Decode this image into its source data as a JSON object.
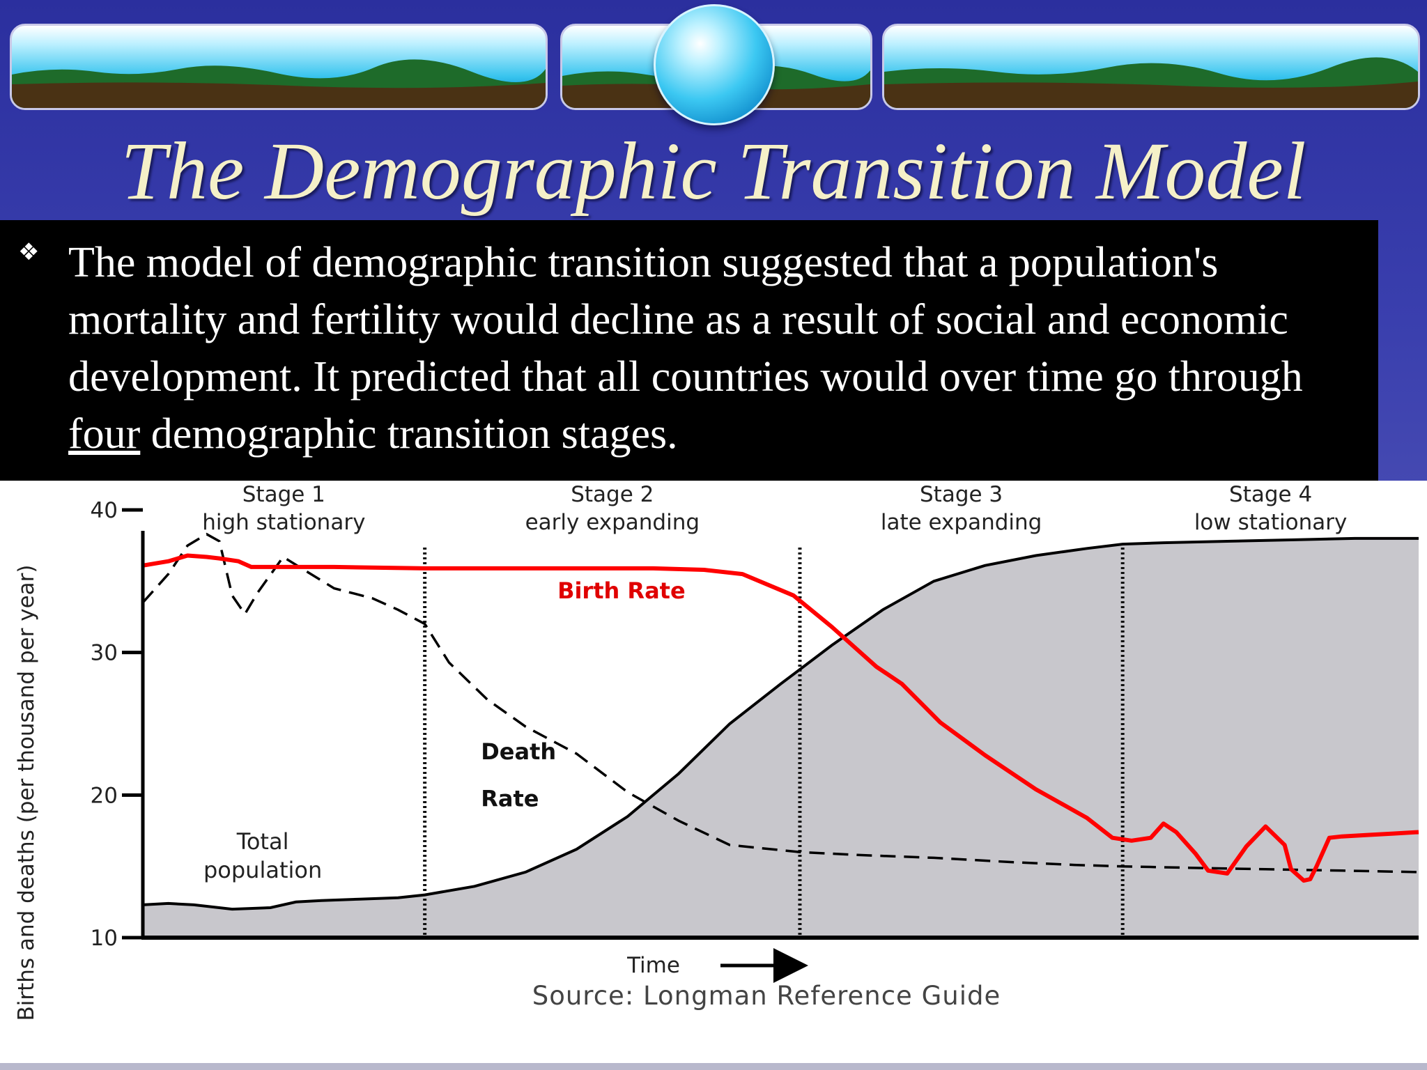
{
  "slide": {
    "title": "The Demographic Transition Model",
    "bullet_symbol": "❖",
    "bullet_text_before": "The model of demographic transition suggested that a population's mortality and fertility would decline as a result of social and economic development. It predicted that all countries would over time go through ",
    "bullet_emphasis": "four",
    "bullet_text_after": " demographic transition stages."
  },
  "colors": {
    "background": "#3a3fae",
    "title": "#f5f0c8",
    "text_box": "#000000",
    "birth_rate": "#ff0000",
    "death_rate": "#000000",
    "population_fill": "#c8c7cc"
  },
  "chart_data": {
    "type": "line",
    "ylabel": "Births and deaths (per thousand per year)",
    "xlabel": "Time",
    "source": "Source: Longman Reference Guide",
    "ylim": [
      10,
      40
    ],
    "yticks": [
      10,
      20,
      30,
      40
    ],
    "xlim": [
      0,
      100
    ],
    "stages": [
      {
        "title": "Stage 1",
        "subtitle": "high stationary",
        "x_start": 0,
        "x_end": 22.1
      },
      {
        "title": "Stage 2",
        "subtitle": "early expanding",
        "x_start": 22.1,
        "x_end": 51.5
      },
      {
        "title": "Stage 3",
        "subtitle": "late expanding",
        "x_start": 51.5,
        "x_end": 76.8
      },
      {
        "title": "Stage 4",
        "subtitle": "low stationary",
        "x_start": 76.8,
        "x_end": 100
      }
    ],
    "series": [
      {
        "name": "Birth Rate",
        "style": "solid-red",
        "x": [
          0,
          2,
          3.5,
          5,
          6,
          7.5,
          8.5,
          10,
          15,
          22.1,
          30,
          40,
          44,
          47,
          51,
          54,
          57.5,
          59.5,
          62.5,
          66,
          70,
          74,
          76,
          77.5,
          79,
          80,
          81,
          82.5,
          83.5,
          85,
          86.5,
          88,
          89.5,
          90,
          91,
          91.5,
          92,
          93,
          94,
          96,
          98,
          100
        ],
        "y": [
          36.1,
          36.4,
          36.8,
          36.7,
          36.6,
          36.4,
          36.0,
          36.0,
          36.0,
          35.9,
          35.9,
          35.9,
          35.8,
          35.5,
          34.0,
          31.8,
          29.0,
          27.8,
          25.1,
          22.8,
          20.4,
          18.4,
          17.0,
          16.8,
          17.0,
          18.0,
          17.4,
          15.9,
          14.7,
          14.5,
          16.4,
          17.8,
          16.5,
          14.8,
          14.0,
          14.1,
          15.0,
          17.0,
          17.1,
          17.2,
          17.3,
          17.4
        ]
      },
      {
        "name": "Death Rate",
        "style": "dashed-black",
        "x": [
          0,
          2,
          3.5,
          5,
          6,
          7,
          8,
          9,
          11,
          13,
          15,
          18,
          20,
          22.1,
          24,
          27,
          30,
          34,
          38,
          42,
          46,
          51.5,
          56,
          62,
          68,
          73,
          76.8,
          82,
          88,
          94,
          100
        ],
        "y": [
          33.5,
          35.5,
          37.5,
          38.3,
          37.8,
          34.0,
          32.7,
          34.2,
          36.7,
          35.6,
          34.5,
          33.8,
          33.0,
          32.0,
          29.3,
          26.7,
          24.8,
          22.9,
          20.2,
          18.2,
          16.5,
          16.0,
          15.8,
          15.6,
          15.3,
          15.1,
          15.0,
          14.9,
          14.8,
          14.7,
          14.6
        ]
      },
      {
        "name": "Total population",
        "style": "solid-black-filled",
        "x": [
          0,
          2,
          4,
          7,
          10,
          12,
          14,
          17,
          20,
          22.1,
          26,
          30,
          34,
          38,
          42,
          46,
          50,
          54,
          58,
          62,
          66,
          70,
          74,
          76.8,
          80,
          85,
          90,
          95,
          100
        ],
        "y": [
          12.3,
          12.4,
          12.3,
          12.0,
          12.1,
          12.5,
          12.6,
          12.7,
          12.8,
          13.0,
          13.6,
          14.6,
          16.2,
          18.5,
          21.5,
          25.0,
          27.8,
          30.5,
          33.0,
          35.0,
          36.1,
          36.8,
          37.3,
          37.6,
          37.7,
          37.8,
          37.9,
          38.0,
          38.0
        ]
      }
    ],
    "annotations": [
      {
        "text": "Birth Rate",
        "x": 32.5,
        "y": 33.8
      },
      {
        "text": "Death",
        "x": 26.5,
        "y": 22.5
      },
      {
        "text": "Rate",
        "x": 26.5,
        "y": 19.2
      },
      {
        "text": "Total",
        "x": 9.4,
        "y": 16.2
      },
      {
        "text": "population",
        "x": 9.4,
        "y": 14.2
      }
    ]
  }
}
